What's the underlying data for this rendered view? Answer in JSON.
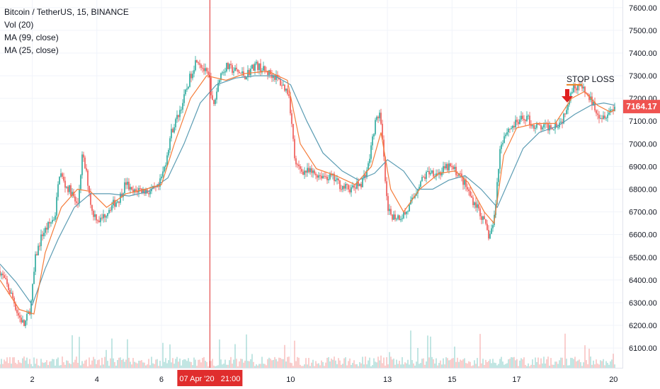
{
  "legend": {
    "title": "Bitcoin / TetherUS, 15, BINANCE",
    "vol": "Vol (20)",
    "ma1": "MA (99, close)",
    "ma2": "MA (25, close)"
  },
  "price_tag": "7164.17",
  "crosshair_label": "07 Apr '20   21:00",
  "annotation": "STOP LOSS",
  "colors": {
    "up": "#26a69a",
    "down": "#ef5350",
    "ma99": "#5b9cb3",
    "ma25": "#f57c3a",
    "crosshair": "#e02d2d",
    "stop": "#e8821f",
    "arrow": "#e02020",
    "tag": "#ef5350"
  },
  "chart_data": {
    "type": "candlestick",
    "title": "Bitcoin / TetherUS, 15, BINANCE",
    "symbol": "BTCUSDT",
    "interval": "15",
    "exchange": "BINANCE",
    "y_ticks": [
      6100,
      6200,
      6300,
      6400,
      6500,
      6600,
      6700,
      6800,
      6900,
      7000,
      7100,
      7200,
      7300,
      7400,
      7500,
      7600
    ],
    "y_tick_labels": [
      "6100.00",
      "6200.00",
      "6300.00",
      "6400.00",
      "6500.00",
      "6600.00",
      "6700.00",
      "6800.00",
      "6900.00",
      "7000.00",
      "7100.00",
      "7200.00",
      "7300.00",
      "7400.00",
      "7500.00",
      "7600.00"
    ],
    "ylim": [
      6010,
      7615
    ],
    "x_ticks": [
      "2",
      "4",
      "6",
      "10",
      "13",
      "15",
      "17",
      "20"
    ],
    "xlim": [
      1.0,
      20.3
    ],
    "last_price": 7164.17,
    "stop_loss": 7260,
    "crosshair_x": 7.5,
    "price_path": [
      [
        1.0,
        6440
      ],
      [
        1.2,
        6380
      ],
      [
        1.4,
        6320
      ],
      [
        1.55,
        6250
      ],
      [
        1.75,
        6200
      ],
      [
        1.95,
        6280
      ],
      [
        2.1,
        6500
      ],
      [
        2.3,
        6600
      ],
      [
        2.5,
        6640
      ],
      [
        2.7,
        6680
      ],
      [
        2.85,
        6880
      ],
      [
        3.0,
        6820
      ],
      [
        3.2,
        6790
      ],
      [
        3.4,
        6720
      ],
      [
        3.55,
        6950
      ],
      [
        3.7,
        6850
      ],
      [
        3.85,
        6700
      ],
      [
        4.1,
        6660
      ],
      [
        4.4,
        6720
      ],
      [
        4.7,
        6760
      ],
      [
        4.9,
        6830
      ],
      [
        5.1,
        6780
      ],
      [
        5.3,
        6800
      ],
      [
        5.6,
        6790
      ],
      [
        5.9,
        6800
      ],
      [
        6.1,
        6900
      ],
      [
        6.3,
        7050
      ],
      [
        6.5,
        7120
      ],
      [
        6.7,
        7200
      ],
      [
        6.9,
        7300
      ],
      [
        7.1,
        7380
      ],
      [
        7.3,
        7330
      ],
      [
        7.5,
        7280
      ],
      [
        7.6,
        7150
      ],
      [
        7.8,
        7300
      ],
      [
        8.0,
        7340
      ],
      [
        8.3,
        7320
      ],
      [
        8.6,
        7300
      ],
      [
        8.9,
        7350
      ],
      [
        9.2,
        7320
      ],
      [
        9.5,
        7300
      ],
      [
        9.8,
        7250
      ],
      [
        9.95,
        7220
      ],
      [
        10.15,
        6900
      ],
      [
        10.4,
        6880
      ],
      [
        10.7,
        6870
      ],
      [
        11.0,
        6860
      ],
      [
        11.3,
        6850
      ],
      [
        11.6,
        6810
      ],
      [
        11.9,
        6800
      ],
      [
        12.2,
        6830
      ],
      [
        12.4,
        6900
      ],
      [
        12.6,
        7080
      ],
      [
        12.75,
        7140
      ],
      [
        12.85,
        7000
      ],
      [
        13.0,
        6700
      ],
      [
        13.2,
        6680
      ],
      [
        13.4,
        6680
      ],
      [
        13.6,
        6700
      ],
      [
        13.8,
        6760
      ],
      [
        14.0,
        6830
      ],
      [
        14.3,
        6880
      ],
      [
        14.6,
        6870
      ],
      [
        14.9,
        6900
      ],
      [
        15.2,
        6870
      ],
      [
        15.4,
        6820
      ],
      [
        15.6,
        6760
      ],
      [
        15.8,
        6720
      ],
      [
        16.0,
        6650
      ],
      [
        16.15,
        6590
      ],
      [
        16.3,
        6660
      ],
      [
        16.5,
        7000
      ],
      [
        16.7,
        7060
      ],
      [
        16.9,
        7080
      ],
      [
        17.1,
        7100
      ],
      [
        17.3,
        7120
      ],
      [
        17.5,
        7080
      ],
      [
        17.8,
        7070
      ],
      [
        18.1,
        7080
      ],
      [
        18.4,
        7100
      ],
      [
        18.7,
        7240
      ],
      [
        18.9,
        7260
      ],
      [
        19.1,
        7230
      ],
      [
        19.35,
        7180
      ],
      [
        19.6,
        7120
      ],
      [
        19.85,
        7140
      ],
      [
        20.05,
        7164
      ]
    ],
    "ma25": [
      [
        1.0,
        6400
      ],
      [
        1.6,
        6270
      ],
      [
        2.05,
        6250
      ],
      [
        2.4,
        6520
      ],
      [
        2.9,
        6720
      ],
      [
        3.4,
        6800
      ],
      [
        3.8,
        6790
      ],
      [
        4.3,
        6720
      ],
      [
        4.9,
        6780
      ],
      [
        5.5,
        6800
      ],
      [
        6.0,
        6820
      ],
      [
        6.4,
        7000
      ],
      [
        6.9,
        7200
      ],
      [
        7.4,
        7300
      ],
      [
        8.0,
        7280
      ],
      [
        8.6,
        7310
      ],
      [
        9.3,
        7320
      ],
      [
        9.9,
        7280
      ],
      [
        10.3,
        7000
      ],
      [
        10.8,
        6890
      ],
      [
        11.4,
        6860
      ],
      [
        12.0,
        6820
      ],
      [
        12.5,
        6900
      ],
      [
        12.8,
        7050
      ],
      [
        13.1,
        6800
      ],
      [
        13.5,
        6700
      ],
      [
        14.0,
        6800
      ],
      [
        14.6,
        6870
      ],
      [
        15.1,
        6880
      ],
      [
        15.5,
        6830
      ],
      [
        16.0,
        6700
      ],
      [
        16.3,
        6650
      ],
      [
        16.6,
        6950
      ],
      [
        17.0,
        7070
      ],
      [
        17.6,
        7090
      ],
      [
        18.2,
        7090
      ],
      [
        18.7,
        7200
      ],
      [
        19.1,
        7230
      ],
      [
        19.5,
        7170
      ],
      [
        19.9,
        7140
      ],
      [
        20.05,
        7150
      ]
    ],
    "ma99": [
      [
        1.0,
        6470
      ],
      [
        1.5,
        6390
      ],
      [
        2.0,
        6290
      ],
      [
        2.4,
        6450
      ],
      [
        2.8,
        6580
      ],
      [
        3.3,
        6720
      ],
      [
        3.8,
        6780
      ],
      [
        4.4,
        6780
      ],
      [
        5.0,
        6770
      ],
      [
        5.6,
        6790
      ],
      [
        6.2,
        6850
      ],
      [
        6.7,
        7000
      ],
      [
        7.2,
        7180
      ],
      [
        7.7,
        7260
      ],
      [
        8.3,
        7290
      ],
      [
        8.9,
        7300
      ],
      [
        9.5,
        7300
      ],
      [
        10.0,
        7260
      ],
      [
        10.5,
        7100
      ],
      [
        11.0,
        6960
      ],
      [
        11.6,
        6880
      ],
      [
        12.1,
        6840
      ],
      [
        12.6,
        6870
      ],
      [
        13.0,
        6930
      ],
      [
        13.5,
        6880
      ],
      [
        13.9,
        6800
      ],
      [
        14.4,
        6800
      ],
      [
        14.9,
        6840
      ],
      [
        15.4,
        6860
      ],
      [
        15.9,
        6800
      ],
      [
        16.4,
        6720
      ],
      [
        16.8,
        6850
      ],
      [
        17.2,
        6980
      ],
      [
        17.7,
        7050
      ],
      [
        18.3,
        7080
      ],
      [
        18.8,
        7130
      ],
      [
        19.3,
        7170
      ],
      [
        19.7,
        7180
      ],
      [
        20.05,
        7170
      ]
    ]
  }
}
